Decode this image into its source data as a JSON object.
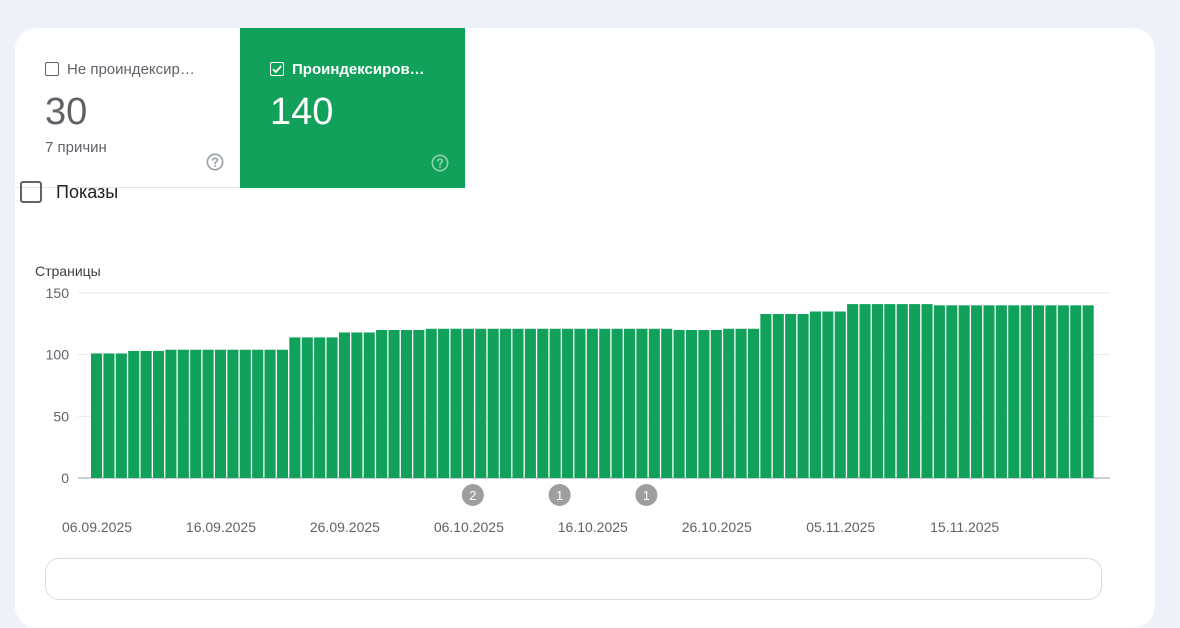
{
  "tiles": {
    "not_indexed": {
      "label": "Не проиндексир…",
      "value": "30",
      "sub": "7 причин",
      "checked": false
    },
    "indexed": {
      "label": "Проиндексирова…",
      "value": "140",
      "checked": true
    }
  },
  "impressions_toggle": {
    "label": "Показы",
    "checked": false
  },
  "colors": {
    "accent": "#11a15a",
    "bar": "#11a15a",
    "annotation": "#9e9e9e"
  },
  "chart_data": {
    "type": "bar",
    "ylabel": "Страницы",
    "ylim": [
      0,
      150
    ],
    "yticks": [
      "150",
      "100",
      "50",
      "0"
    ],
    "xtick_labels": [
      "06.09.2025",
      "16.09.2025",
      "26.09.2025",
      "06.10.2025",
      "16.10.2025",
      "26.10.2025",
      "05.11.2025",
      "15.11.2025"
    ],
    "values": [
      101,
      101,
      101,
      103,
      103,
      103,
      104,
      104,
      104,
      104,
      104,
      104,
      104,
      104,
      104,
      104,
      114,
      114,
      114,
      114,
      118,
      118,
      118,
      120,
      120,
      120,
      120,
      121,
      121,
      121,
      121,
      121,
      121,
      121,
      121,
      121,
      121,
      121,
      121,
      121,
      121,
      121,
      121,
      121,
      121,
      121,
      121,
      120,
      120,
      120,
      120,
      121,
      121,
      121,
      133,
      133,
      133,
      133,
      135,
      135,
      135,
      141,
      141,
      141,
      141,
      141,
      141,
      141,
      140,
      140,
      140,
      140,
      140,
      140,
      140,
      140,
      140,
      140,
      140,
      140,
      140
    ],
    "annotations": [
      {
        "label": "2",
        "date": "06.10.2025"
      },
      {
        "label": "1",
        "date": "13.10.2025"
      },
      {
        "label": "1",
        "date": "20.10.2025"
      }
    ]
  }
}
